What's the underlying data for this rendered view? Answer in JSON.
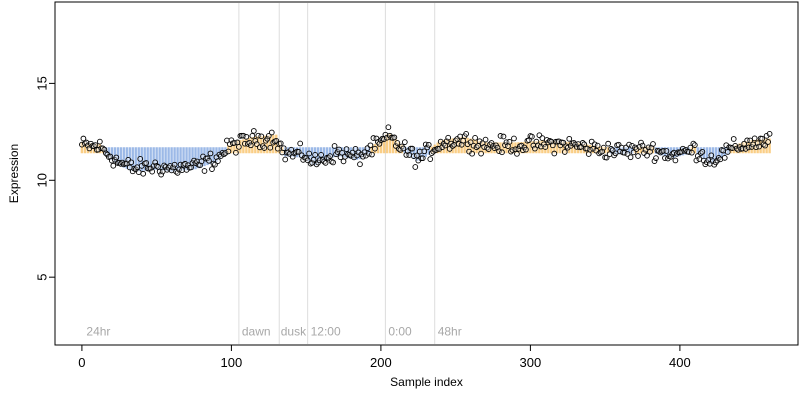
{
  "chart_data": {
    "type": "scatter",
    "xlabel": "Sample index",
    "ylabel": "Expression",
    "xlim": [
      -18,
      479
    ],
    "ylim": [
      1.5,
      19.2
    ],
    "x_ticks": [
      0,
      100,
      200,
      300,
      400
    ],
    "y_ticks": [
      5,
      10,
      15
    ],
    "grid": false,
    "n_points": 461,
    "points_color": "#000000",
    "vlines": [
      105,
      132,
      151,
      203,
      236
    ],
    "vline_color": "#dddddd",
    "annotations": [
      {
        "label": "24hr",
        "x": 3,
        "y": 2
      },
      {
        "label": "dawn",
        "x": 107,
        "y": 2
      },
      {
        "label": "dusk",
        "x": 133,
        "y": 2
      },
      {
        "label": "12:00",
        "x": 153,
        "y": 2
      },
      {
        "label": "0:00",
        "x": 205,
        "y": 2
      },
      {
        "label": "48hr",
        "x": 238,
        "y": 2
      }
    ],
    "annotation_color": "#a8a8a8",
    "trend": [
      [
        0,
        11.8
      ],
      [
        12,
        11.7
      ],
      [
        25,
        10.9
      ],
      [
        35,
        10.6
      ],
      [
        50,
        10.7
      ],
      [
        60,
        10.6
      ],
      [
        75,
        10.7
      ],
      [
        90,
        11.1
      ],
      [
        100,
        11.8
      ],
      [
        115,
        12.1
      ],
      [
        130,
        12.2
      ],
      [
        135,
        11.4
      ],
      [
        150,
        11.3
      ],
      [
        155,
        10.9
      ],
      [
        170,
        11.4
      ],
      [
        185,
        11.2
      ],
      [
        200,
        11.9
      ],
      [
        205,
        12.3
      ],
      [
        215,
        11.6
      ],
      [
        225,
        11.1
      ],
      [
        240,
        11.9
      ],
      [
        255,
        12.1
      ],
      [
        270,
        11.8
      ],
      [
        290,
        11.8
      ],
      [
        310,
        11.9
      ],
      [
        330,
        11.8
      ],
      [
        345,
        11.6
      ],
      [
        360,
        11.5
      ],
      [
        380,
        11.6
      ],
      [
        395,
        11.3
      ],
      [
        410,
        11.6
      ],
      [
        420,
        11.0
      ],
      [
        435,
        11.6
      ],
      [
        445,
        11.9
      ],
      [
        460,
        12.0
      ]
    ],
    "highlight_above_color": "#f5a623",
    "highlight_below_color": "#4a7fd4"
  }
}
